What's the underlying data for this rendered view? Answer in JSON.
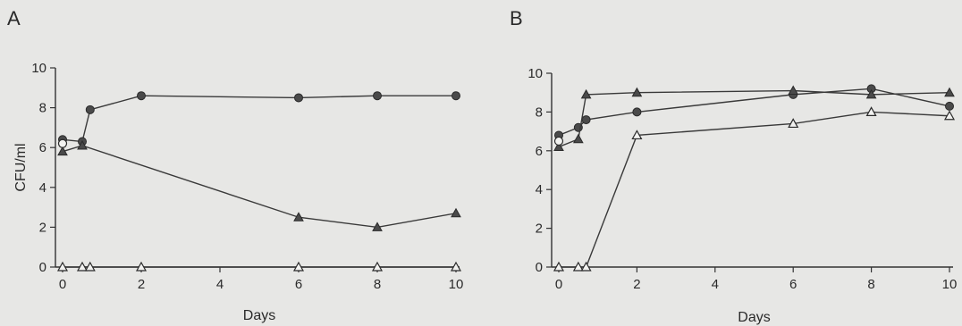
{
  "chart_data": [
    {
      "panel": "A",
      "type": "line",
      "xlabel": "Days",
      "ylabel": "CFU/ml",
      "xlim": [
        0,
        10
      ],
      "ylim": [
        0,
        10
      ],
      "xticks": [
        0,
        2,
        4,
        6,
        8,
        10
      ],
      "yticks": [
        0,
        2,
        4,
        6,
        8,
        10
      ],
      "grid": false,
      "series": [
        {
          "marker": "filled-circle",
          "x": [
            0,
            0.5,
            0.7,
            2,
            6,
            8,
            10
          ],
          "y": [
            6.4,
            6.3,
            7.9,
            8.6,
            8.5,
            8.6,
            8.6
          ]
        },
        {
          "marker": "filled-triangle",
          "x": [
            0,
            0.5,
            6,
            8,
            10
          ],
          "y": [
            5.8,
            6.1,
            2.5,
            2.0,
            2.7
          ]
        },
        {
          "marker": "open-triangle",
          "x": [
            0,
            0.5,
            0.7,
            2,
            6,
            8,
            10
          ],
          "y": [
            0,
            0,
            0,
            0,
            0,
            0,
            0
          ]
        },
        {
          "marker": "open-circle",
          "x": [
            0
          ],
          "y": [
            6.2
          ]
        }
      ]
    },
    {
      "panel": "B",
      "type": "line",
      "xlabel": "Days",
      "ylabel": "",
      "xlim": [
        0,
        10
      ],
      "ylim": [
        0,
        10
      ],
      "xticks": [
        0,
        2,
        4,
        6,
        8,
        10
      ],
      "yticks": [
        0,
        2,
        4,
        6,
        8,
        10
      ],
      "grid": false,
      "series": [
        {
          "marker": "filled-circle",
          "x": [
            0,
            0.5,
            0.7,
            2,
            6,
            8,
            10
          ],
          "y": [
            6.8,
            7.2,
            7.6,
            8.0,
            8.9,
            9.2,
            8.3
          ]
        },
        {
          "marker": "filled-triangle",
          "x": [
            0,
            0.5,
            0.7,
            2,
            6,
            8,
            10
          ],
          "y": [
            6.2,
            6.6,
            8.9,
            9.0,
            9.1,
            8.9,
            9.0
          ]
        },
        {
          "marker": "open-triangle",
          "x": [
            0,
            0.5,
            0.7,
            2,
            6,
            8,
            10
          ],
          "y": [
            0,
            0,
            0,
            6.8,
            7.4,
            8.0,
            7.8
          ]
        },
        {
          "marker": "open-circle",
          "x": [
            0
          ],
          "y": [
            6.5
          ]
        }
      ]
    }
  ]
}
